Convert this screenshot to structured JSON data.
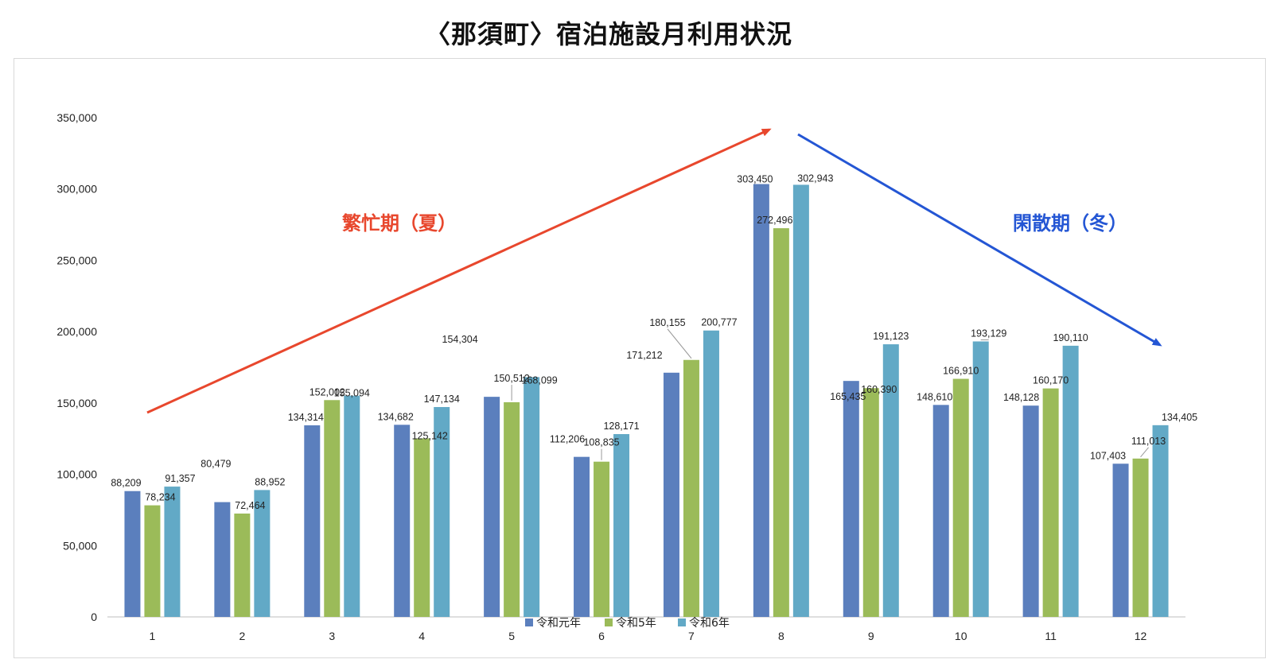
{
  "page": {
    "title": "〈那須町〉宿泊施設月利用状況"
  },
  "chart_data": {
    "type": "bar",
    "title": "〈那須町〉宿泊施設月利用状況",
    "categories": [
      "1",
      "2",
      "3",
      "4",
      "5",
      "6",
      "7",
      "8",
      "9",
      "10",
      "11",
      "12"
    ],
    "series": [
      {
        "name": "令和元年",
        "color": "#5b7fbd",
        "values": [
          88209,
          80479,
          134314,
          134682,
          154304,
          112206,
          171212,
          303450,
          165435,
          148610,
          148128,
          107403
        ]
      },
      {
        "name": "令和5年",
        "color": "#9bbb59",
        "values": [
          78234,
          72464,
          152002,
          125142,
          150512,
          108835,
          180155,
          272496,
          160390,
          166910,
          160170,
          111013
        ]
      },
      {
        "name": "令和6年",
        "color": "#62a9c6",
        "values": [
          91357,
          88952,
          155094,
          147134,
          168099,
          128171,
          200777,
          302943,
          191123,
          193129,
          190110,
          134405
        ]
      }
    ],
    "ylim": [
      0,
      350000
    ],
    "yticks": [
      0,
      50000,
      100000,
      150000,
      200000,
      250000,
      300000,
      350000
    ],
    "ytick_labels": [
      "0",
      "50,000",
      "100,000",
      "150,000",
      "200,000",
      "250,000",
      "300,000",
      "350,000"
    ],
    "xlabel": "",
    "ylabel": "",
    "legend_position": "bottom-center",
    "annotations": [
      {
        "text": "繁忙期（夏）",
        "color": "#e8472d"
      },
      {
        "text": "閑散期（冬）",
        "color": "#2456d4"
      }
    ]
  }
}
